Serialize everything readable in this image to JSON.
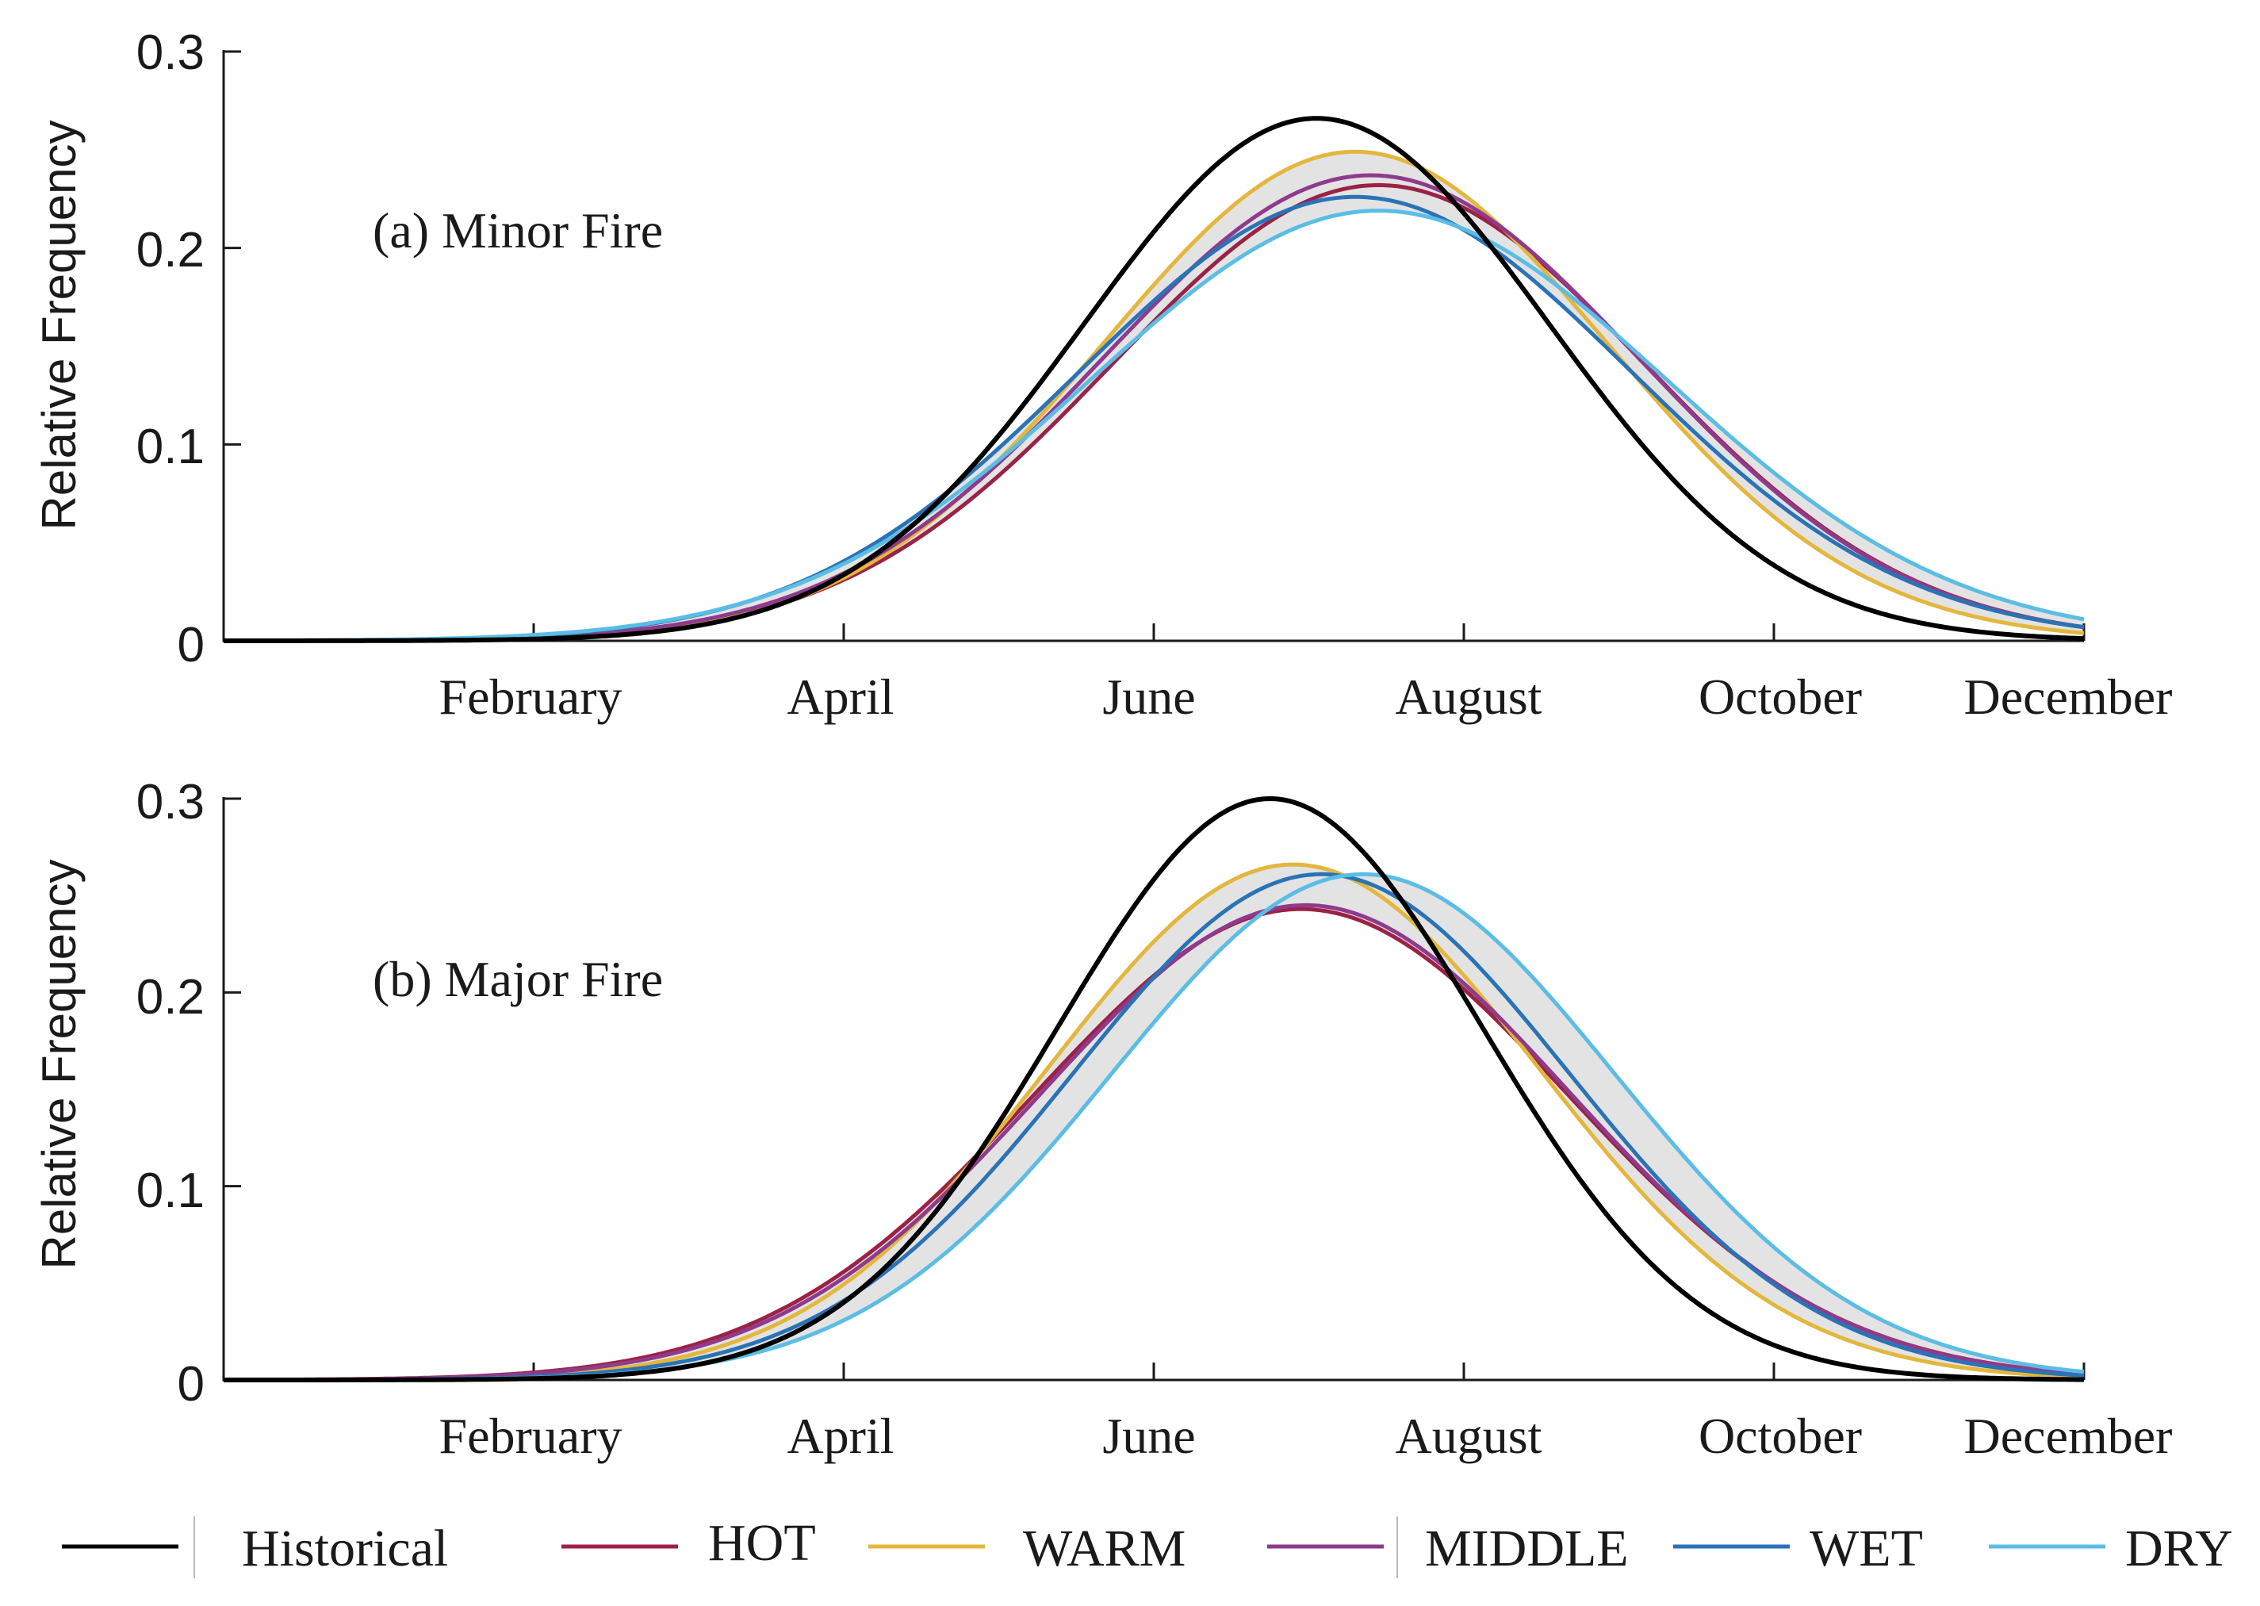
{
  "chart_data": [
    {
      "type": "line",
      "title": "(a) Minor Fire",
      "xlabel": "",
      "ylabel": "Relative Frequency",
      "xlim": [
        0,
        12
      ],
      "ylim": [
        0,
        0.3
      ],
      "yticks": [
        "0",
        "0.1",
        "0.2",
        "0.3"
      ],
      "xticks": [
        {
          "month": 2,
          "label": "February"
        },
        {
          "month": 4,
          "label": "April"
        },
        {
          "month": 6,
          "label": "June"
        },
        {
          "month": 8,
          "label": "August"
        },
        {
          "month": 10,
          "label": "October"
        },
        {
          "month": 12,
          "label": "December"
        }
      ],
      "series": [
        {
          "name": "Historical",
          "mu": 7.05,
          "sigma": 1.5,
          "peak": 0.266
        },
        {
          "name": "HOT",
          "mu": 7.45,
          "sigma": 1.72,
          "peak": 0.232
        },
        {
          "name": "WARM",
          "mu": 7.3,
          "sigma": 1.63,
          "peak": 0.249
        },
        {
          "name": "MIDDLE",
          "mu": 7.4,
          "sigma": 1.73,
          "peak": 0.237
        },
        {
          "name": "WET",
          "mu": 7.3,
          "sigma": 1.78,
          "peak": 0.226
        },
        {
          "name": "DRY",
          "mu": 7.45,
          "sigma": 1.86,
          "peak": 0.219
        }
      ]
    },
    {
      "type": "line",
      "title": "(b) Major Fire",
      "xlabel": "",
      "ylabel": "Relative Frequency",
      "xlim": [
        0,
        12
      ],
      "ylim": [
        0,
        0.3
      ],
      "yticks": [
        "0",
        "0.1",
        "0.2",
        "0.3"
      ],
      "xticks": [
        {
          "month": 2,
          "label": "February"
        },
        {
          "month": 4,
          "label": "April"
        },
        {
          "month": 6,
          "label": "June"
        },
        {
          "month": 8,
          "label": "August"
        },
        {
          "month": 10,
          "label": "October"
        },
        {
          "month": 12,
          "label": "December"
        }
      ],
      "series": [
        {
          "name": "Historical",
          "mu": 6.75,
          "sigma": 1.37,
          "peak": 0.3
        },
        {
          "name": "HOT",
          "mu": 6.95,
          "sigma": 1.72,
          "peak": 0.243
        },
        {
          "name": "WARM",
          "mu": 6.9,
          "sigma": 1.58,
          "peak": 0.266
        },
        {
          "name": "MIDDLE",
          "mu": 6.98,
          "sigma": 1.7,
          "peak": 0.245
        },
        {
          "name": "WET",
          "mu": 7.08,
          "sigma": 1.6,
          "peak": 0.261
        },
        {
          "name": "DRY",
          "mu": 7.35,
          "sigma": 1.62,
          "peak": 0.261
        }
      ]
    }
  ],
  "legend": [
    {
      "name": "Historical",
      "color": "#000000"
    },
    {
      "name": "HOT",
      "color": "#9b2246"
    },
    {
      "name": "WARM",
      "color": "#e3b73d"
    },
    {
      "name": "MIDDLE",
      "color": "#8e3b8c"
    },
    {
      "name": "WET",
      "color": "#2a73b5"
    },
    {
      "name": "DRY",
      "color": "#5bbde6"
    }
  ],
  "colors": {
    "band_fill": "#e3e3e3"
  }
}
